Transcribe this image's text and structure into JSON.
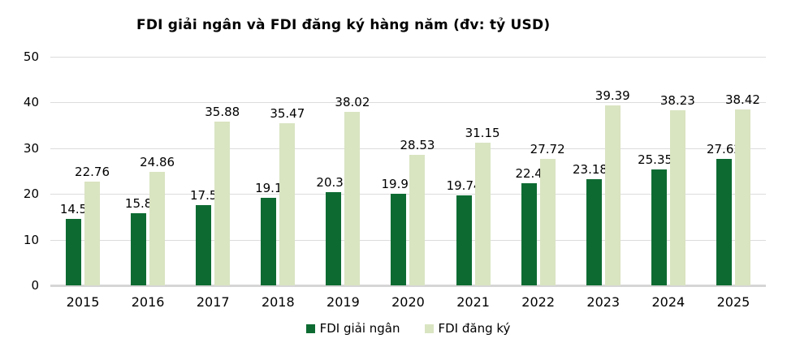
{
  "title": "FDI giải ngân và FDI đăng ký hàng năm (đv: tỷ USD)",
  "colors": {
    "disbursed": "#0d6b32",
    "registered": "#d9e4c1",
    "gridline": "#dcdcdc",
    "baseline": "#d6d6d6",
    "text": "#000000"
  },
  "legend": [
    {
      "label": "FDI giải ngân"
    },
    {
      "label": "FDI đăng ký"
    }
  ],
  "chart_data": {
    "type": "bar",
    "title": "FDI giải ngân và FDI đăng ký hàng năm (đv: tỷ USD)",
    "categories": [
      "2015",
      "2016",
      "2017",
      "2018",
      "2019",
      "2020",
      "2021",
      "2022",
      "2023",
      "2024",
      "2025"
    ],
    "series": [
      {
        "name": "FDI giải ngân",
        "values": [
          14.5,
          15.8,
          17.5,
          19.1,
          20.38,
          19.98,
          19.74,
          22.4,
          23.183,
          25.351,
          27.62
        ]
      },
      {
        "name": "FDI đăng ký",
        "values": [
          22.76,
          24.86,
          35.88,
          35.47,
          38.02,
          28.53,
          31.15,
          27.72,
          39.39,
          38.23,
          38.42
        ]
      }
    ],
    "xlabel": "",
    "ylabel": "",
    "ylim": [
      0,
      50
    ],
    "yticks": [
      0,
      10,
      20,
      30,
      40,
      50
    ],
    "grid": true,
    "legend_position": "bottom"
  }
}
